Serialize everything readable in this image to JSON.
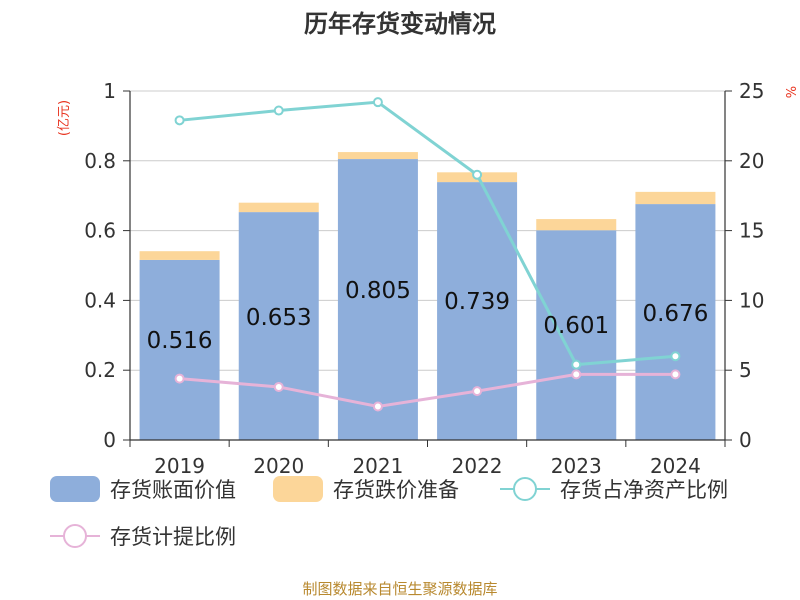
{
  "chart_data": {
    "type": "bar",
    "title": "历年存货变动情况",
    "categories": [
      "2019",
      "2020",
      "2021",
      "2022",
      "2023",
      "2024"
    ],
    "left_axis": {
      "unit": "(亿元)",
      "ylim": [
        0,
        1
      ],
      "ticks": [
        "0",
        "0.2",
        "0.4",
        "0.6",
        "0.8",
        "1"
      ]
    },
    "right_axis": {
      "unit": "%",
      "ylim": [
        0,
        25
      ],
      "ticks": [
        "0",
        "5",
        "10",
        "15",
        "20",
        "25"
      ]
    },
    "series": [
      {
        "name": "存货账面价值",
        "kind": "bar",
        "axis": "left",
        "color": "#8eaedb",
        "values": [
          0.516,
          0.653,
          0.805,
          0.739,
          0.601,
          0.676
        ],
        "labels": [
          "0.516",
          "0.653",
          "0.805",
          "0.739",
          "0.601",
          "0.676"
        ]
      },
      {
        "name": "存货跌价准备",
        "kind": "bar",
        "axis": "left",
        "color": "#fcd699",
        "values": [
          0.025,
          0.027,
          0.02,
          0.028,
          0.032,
          0.035
        ]
      },
      {
        "name": "存货占净资产比例",
        "kind": "line",
        "axis": "right",
        "color": "#80d3d3",
        "values": [
          22.9,
          23.6,
          24.2,
          19.0,
          5.4,
          6.0
        ]
      },
      {
        "name": "存货计提比例",
        "kind": "line",
        "axis": "right",
        "color": "#e6b3d8",
        "values": [
          4.4,
          3.8,
          2.4,
          3.5,
          4.7,
          4.7
        ]
      }
    ],
    "grid": true,
    "legend_position": "bottom"
  },
  "footer": {
    "source": "制图数据来自恒生聚源数据库"
  }
}
